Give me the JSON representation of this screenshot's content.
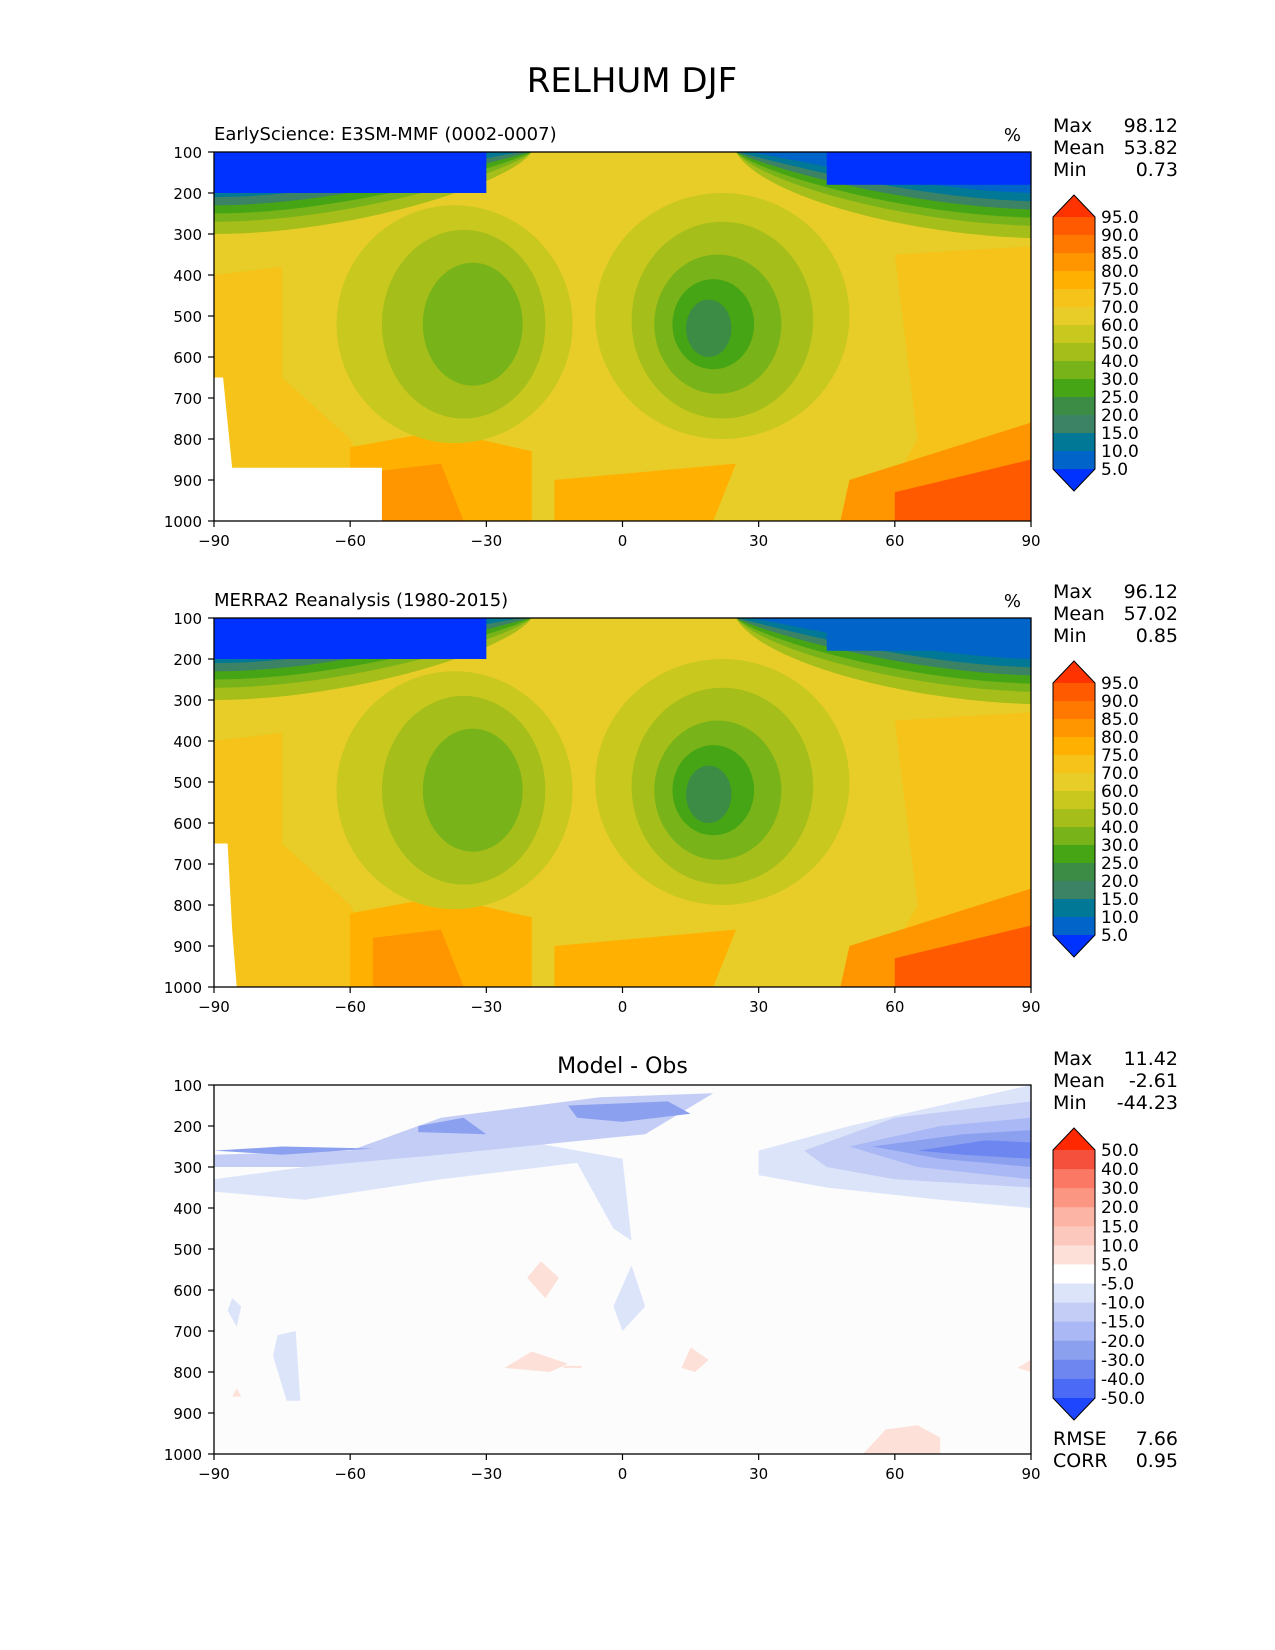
{
  "figure": {
    "title": "RELHUM DJF"
  },
  "chart_data": [
    {
      "type": "heatmap",
      "id": "test",
      "title": "EarlyScience: E3SM-MMF (0002-0007)",
      "units": "%",
      "x_ticks": [
        -90,
        -60,
        -30,
        0,
        30,
        60,
        90
      ],
      "x_tick_labels": [
        "−90",
        "−60",
        "−30",
        "0",
        "30",
        "60",
        "90"
      ],
      "xlim": [
        -90,
        90
      ],
      "y_ticks": [
        100,
        200,
        300,
        400,
        500,
        600,
        700,
        800,
        900,
        1000
      ],
      "ylim": [
        100,
        1000
      ],
      "y_inverted": true,
      "stats": [
        {
          "label": "Max",
          "value": "98.12"
        },
        {
          "label": "Mean",
          "value": "53.82"
        },
        {
          "label": "Min",
          "value": "0.73"
        }
      ],
      "colorbar": {
        "levels": [
          "95.0",
          "90.0",
          "85.0",
          "80.0",
          "75.0",
          "70.0",
          "60.0",
          "50.0",
          "40.0",
          "30.0",
          "25.0",
          "20.0",
          "15.0",
          "10.0",
          "5.0"
        ],
        "colors": [
          "#ff3300",
          "#ff5a00",
          "#ff7800",
          "#ff9600",
          "#ffb000",
          "#f5c319",
          "#e8cc28",
          "#c8c81e",
          "#a5be19",
          "#78b419",
          "#46a514",
          "#3c8c46",
          "#3c8264",
          "#007896",
          "#0064c8",
          "#0032ff"
        ]
      },
      "missing_region": "white"
    },
    {
      "type": "heatmap",
      "id": "ref",
      "title": "MERRA2 Reanalysis (1980-2015)",
      "units": "%",
      "x_ticks": [
        -90,
        -60,
        -30,
        0,
        30,
        60,
        90
      ],
      "x_tick_labels": [
        "−90",
        "−60",
        "−30",
        "0",
        "30",
        "60",
        "90"
      ],
      "xlim": [
        -90,
        90
      ],
      "y_ticks": [
        100,
        200,
        300,
        400,
        500,
        600,
        700,
        800,
        900,
        1000
      ],
      "ylim": [
        100,
        1000
      ],
      "y_inverted": true,
      "stats": [
        {
          "label": "Max",
          "value": "96.12"
        },
        {
          "label": "Mean",
          "value": "57.02"
        },
        {
          "label": "Min",
          "value": "0.85"
        }
      ],
      "colorbar": {
        "levels": [
          "95.0",
          "90.0",
          "85.0",
          "80.0",
          "75.0",
          "70.0",
          "60.0",
          "50.0",
          "40.0",
          "30.0",
          "25.0",
          "20.0",
          "15.0",
          "10.0",
          "5.0"
        ],
        "colors": [
          "#ff3300",
          "#ff5a00",
          "#ff7800",
          "#ff9600",
          "#ffb000",
          "#f5c319",
          "#e8cc28",
          "#c8c81e",
          "#a5be19",
          "#78b419",
          "#46a514",
          "#3c8c46",
          "#3c8264",
          "#007896",
          "#0064c8",
          "#0032ff"
        ]
      },
      "missing_region": "white"
    },
    {
      "type": "heatmap",
      "id": "diff",
      "title": "Model - Obs",
      "units": "",
      "x_ticks": [
        -90,
        -60,
        -30,
        0,
        30,
        60,
        90
      ],
      "x_tick_labels": [
        "−90",
        "−60",
        "−30",
        "0",
        "30",
        "60",
        "90"
      ],
      "xlim": [
        -90,
        90
      ],
      "y_ticks": [
        100,
        200,
        300,
        400,
        500,
        600,
        700,
        800,
        900,
        1000
      ],
      "ylim": [
        100,
        1000
      ],
      "y_inverted": true,
      "stats": [
        {
          "label": "Max",
          "value": "11.42"
        },
        {
          "label": "Mean",
          "value": "-2.61"
        },
        {
          "label": "Min",
          "value": "-44.23"
        }
      ],
      "extra_stats": [
        {
          "label": "RMSE",
          "value": "7.66"
        },
        {
          "label": "CORR",
          "value": "0.95"
        }
      ],
      "colorbar": {
        "levels": [
          "50.0",
          "40.0",
          "30.0",
          "20.0",
          "15.0",
          "10.0",
          "5.0",
          "-5.0",
          "-10.0",
          "-15.0",
          "-20.0",
          "-30.0",
          "-40.0",
          "-50.0"
        ],
        "colors": [
          "#ff2800",
          "#f5503c",
          "#fa7864",
          "#fa9682",
          "#fcb4a5",
          "#fcc8bd",
          "#fde1d9",
          "#ffffff",
          "#dce4fa",
          "#c3cdf5",
          "#aab9f5",
          "#8ca0f0",
          "#6e87f0",
          "#4b6af5",
          "#1e46ff"
        ]
      }
    }
  ]
}
